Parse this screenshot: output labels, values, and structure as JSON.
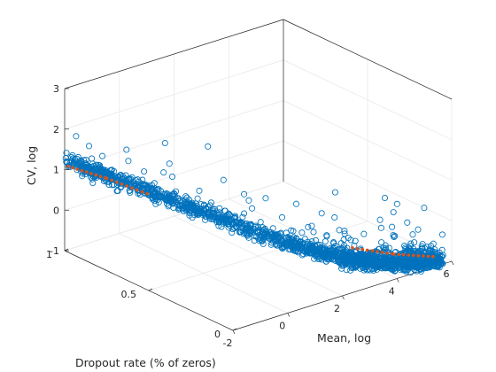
{
  "chart_data": {
    "type": "scatter",
    "title": "",
    "xlabel": "Mean, log",
    "ylabel": "Dropout rate (% of zeros)",
    "zlabel": "CV, log",
    "xlim": [
      -2,
      6
    ],
    "ylim": [
      0,
      1
    ],
    "zlim": [
      -1,
      3
    ],
    "xticks": [
      "-2",
      "0",
      "2",
      "4",
      "6"
    ],
    "yticks": [
      "0",
      "0.5",
      "1"
    ],
    "zticks": [
      "-1",
      "0",
      "1",
      "2",
      "3"
    ],
    "grid": true,
    "view": "3d",
    "colors": {
      "scatter": "#0072BD",
      "fit": "#D95319"
    },
    "series": [
      {
        "marker": "circle",
        "style": "scatter",
        "n_points": 2000,
        "shape": "dense band falling from CV≈1.2 at mean≈-2, dropout≈1 to CV≈-0.8 at mean≈5.5, dropout≈0",
        "outliers": [
          [
            -1.1,
            0.55,
            2.35
          ],
          [
            0.9,
            0.62,
            1.7
          ],
          [
            4.2,
            0.4,
            0.3
          ],
          [
            5.4,
            0.3,
            0.1
          ],
          [
            3.4,
            0.35,
            0.05
          ],
          [
            2.9,
            0.42,
            0.25
          ]
        ]
      },
      {
        "style": "line-markers",
        "points": [
          [
            -2,
            0.98,
            1.12
          ],
          [
            -1.2,
            0.88,
            0.85
          ],
          [
            -0.4,
            0.76,
            0.52
          ],
          [
            3.6,
            0.2,
            -0.55
          ],
          [
            4.5,
            0.1,
            -0.7
          ],
          [
            5.5,
            0.02,
            -0.82
          ]
        ]
      }
    ]
  }
}
